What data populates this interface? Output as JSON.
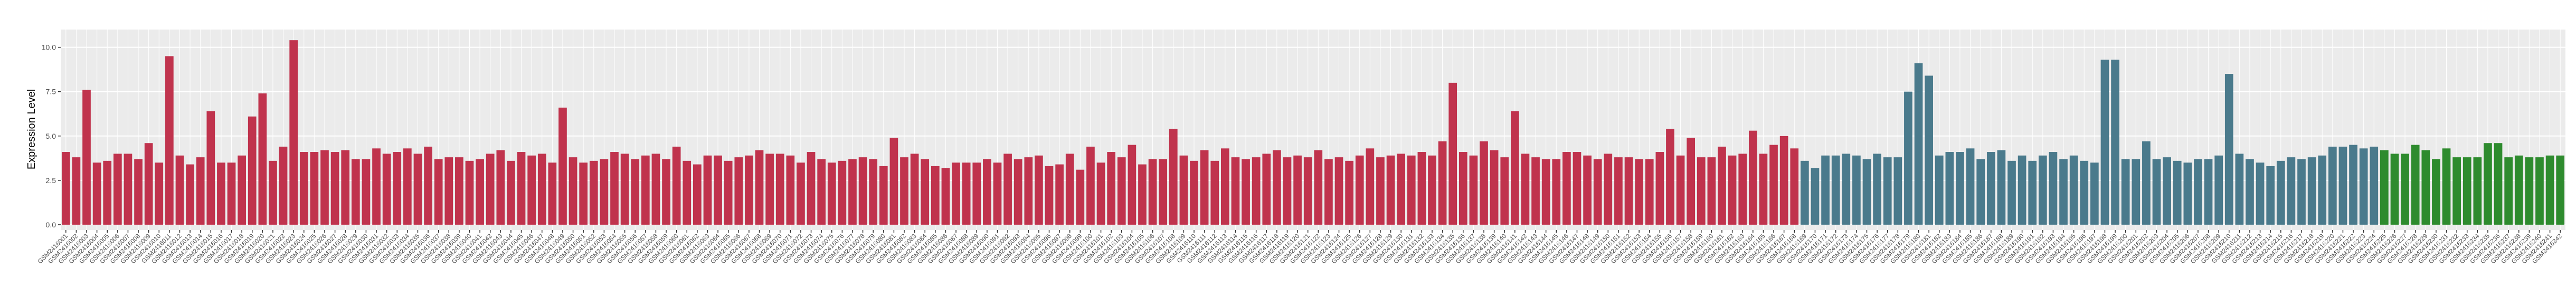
{
  "chart_data": {
    "type": "bar",
    "y_label": "Expression Level",
    "ylim": [
      -0.3,
      11
    ],
    "yticks": [
      {
        "value": 0,
        "label": "0.0"
      },
      {
        "value": 2.5,
        "label": "2.5"
      },
      {
        "value": 5,
        "label": "5.0"
      },
      {
        "value": 7.5,
        "label": "7.5"
      },
      {
        "value": 10,
        "label": "10.0"
      }
    ],
    "grid": true,
    "series": [
      {
        "color": "#c0334d",
        "categories": [
          "GSM2416001",
          "GSM2416002",
          "GSM2416003",
          "GSM2416004",
          "GSM2416005",
          "GSM2416006",
          "GSM2416007",
          "GSM2416008",
          "GSM2416009",
          "GSM2416010",
          "GSM2416011",
          "GSM2416012",
          "GSM2416013",
          "GSM2416014",
          "GSM2416015",
          "GSM2416016",
          "GSM2416017",
          "GSM2416018",
          "GSM2416019",
          "GSM2416020",
          "GSM2416021",
          "GSM2416022",
          "GSM2416023",
          "GSM2416024",
          "GSM2416025",
          "GSM2416026",
          "GSM2416027",
          "GSM2416028",
          "GSM2416029",
          "GSM2416030",
          "GSM2416031",
          "GSM2416032",
          "GSM2416033",
          "GSM2416034",
          "GSM2416035",
          "GSM2416036",
          "GSM2416037",
          "GSM2416038",
          "GSM2416039",
          "GSM2416040",
          "GSM2416041",
          "GSM2416042",
          "GSM2416043",
          "GSM2416044",
          "GSM2416045",
          "GSM2416046",
          "GSM2416047",
          "GSM2416048",
          "GSM2416049",
          "GSM2416050",
          "GSM2416051",
          "GSM2416052",
          "GSM2416053",
          "GSM2416054",
          "GSM2416055",
          "GSM2416056",
          "GSM2416057",
          "GSM2416058",
          "GSM2416059",
          "GSM2416060",
          "GSM2416061",
          "GSM2416062",
          "GSM2416063",
          "GSM2416064",
          "GSM2416065",
          "GSM2416066",
          "GSM2416067",
          "GSM2416068",
          "GSM2416069",
          "GSM2416070",
          "GSM2416071",
          "GSM2416072",
          "GSM2416073",
          "GSM2416074",
          "GSM2416075",
          "GSM2416076",
          "GSM2416077",
          "GSM2416078",
          "GSM2416079",
          "GSM2416080",
          "GSM2416081",
          "GSM2416082",
          "GSM2416083",
          "GSM2416084",
          "GSM2416085",
          "GSM2416086",
          "GSM2416087",
          "GSM2416088",
          "GSM2416089",
          "GSM2416090",
          "GSM2416091",
          "GSM2416092",
          "GSM2416093",
          "GSM2416094",
          "GSM2416095",
          "GSM2416096",
          "GSM2416097",
          "GSM2416098",
          "GSM2416099",
          "GSM2416100",
          "GSM2416101",
          "GSM2416102",
          "GSM2416103",
          "GSM2416104",
          "GSM2416105",
          "GSM2416106",
          "GSM2416107",
          "GSM2416108",
          "GSM2416109",
          "GSM2416110",
          "GSM2416111",
          "GSM2416112",
          "GSM2416113",
          "GSM2416114",
          "GSM2416115",
          "GSM2416116",
          "GSM2416117",
          "GSM2416118",
          "GSM2416119",
          "GSM2416120",
          "GSM2416121",
          "GSM2416122",
          "GSM2416123",
          "GSM2416124",
          "GSM2416125",
          "GSM2416126",
          "GSM2416127",
          "GSM2416128",
          "GSM2416129",
          "GSM2416130",
          "GSM2416131",
          "GSM2416132",
          "GSM2416133",
          "GSM2416134",
          "GSM2416135",
          "GSM2416136",
          "GSM2416137",
          "GSM2416138",
          "GSM2416139",
          "GSM2416140",
          "GSM2416141",
          "GSM2416142",
          "GSM2416143",
          "GSM2416144",
          "GSM2416145",
          "GSM2416146",
          "GSM2416147",
          "GSM2416148",
          "GSM2416149",
          "GSM2416150",
          "GSM2416151",
          "GSM2416152",
          "GSM2416153",
          "GSM2416154",
          "GSM2416155",
          "GSM2416156",
          "GSM2416157",
          "GSM2416158",
          "GSM2416159",
          "GSM2416160",
          "GSM2416161",
          "GSM2416162",
          "GSM2416163",
          "GSM2416164",
          "GSM2416165",
          "GSM2416166",
          "GSM2416167",
          "GSM2416168"
        ],
        "values": [
          4.1,
          3.8,
          7.6,
          3.5,
          3.6,
          4.0,
          4.0,
          3.7,
          4.6,
          3.5,
          9.5,
          3.9,
          3.4,
          3.8,
          6.4,
          3.5,
          3.5,
          3.9,
          6.1,
          7.4,
          3.6,
          4.4,
          10.4,
          4.1,
          4.1,
          4.2,
          4.1,
          4.2,
          3.7,
          3.7,
          4.3,
          4.0,
          4.1,
          4.3,
          4.0,
          4.4,
          3.7,
          3.8,
          3.8,
          3.6,
          3.7,
          4.0,
          4.2,
          3.6,
          4.1,
          3.9,
          4.0,
          3.5,
          6.6,
          3.8,
          3.5,
          3.6,
          3.7,
          4.1,
          4.0,
          3.7,
          3.9,
          4.0,
          3.7,
          4.4,
          3.6,
          3.4,
          3.9,
          3.9,
          3.6,
          3.8,
          3.9,
          4.2,
          4.0,
          4.0,
          3.9,
          3.5,
          4.1,
          3.7,
          3.5,
          3.6,
          3.7,
          3.8,
          3.7,
          3.3,
          4.9,
          3.8,
          4.0,
          3.7,
          3.3,
          3.2,
          3.5,
          3.5,
          3.5,
          3.7,
          3.5,
          4.0,
          3.7,
          3.8,
          3.9,
          3.3,
          3.4,
          4.0,
          3.1,
          4.4,
          3.5,
          4.1,
          3.8,
          4.5,
          3.4,
          3.7,
          3.7,
          5.4,
          3.9,
          3.6,
          4.2,
          3.6,
          4.3,
          3.8,
          3.7,
          3.8,
          4.0,
          4.2,
          3.8,
          3.9,
          3.8,
          4.2,
          3.7,
          3.8,
          3.6,
          3.9,
          4.3,
          3.8,
          3.9,
          4.0,
          3.9,
          4.1,
          3.9,
          4.7,
          8.0,
          4.1,
          3.9,
          4.7,
          4.2,
          3.8,
          6.4,
          4.0,
          3.8,
          3.7,
          3.7,
          4.1,
          4.1,
          3.9,
          3.7,
          4.0,
          3.8,
          3.8,
          3.7,
          3.7,
          4.1,
          5.4,
          3.9,
          4.9,
          3.8,
          3.8,
          4.4,
          3.9,
          4.0,
          5.3,
          4.0,
          4.5,
          5.0,
          4.3
        ]
      },
      {
        "color": "#4a7a8c",
        "categories": [
          "GSM2416169",
          "GSM2416170",
          "GSM2416171",
          "GSM2416172",
          "GSM2416173",
          "GSM2416174",
          "GSM2416175",
          "GSM2416176",
          "GSM2416177",
          "GSM2416178",
          "GSM2416179",
          "GSM2416180",
          "GSM2416181",
          "GSM2416182",
          "GSM2416183",
          "GSM2416184",
          "GSM2416185",
          "GSM2416186",
          "GSM2416187",
          "GSM2416188",
          "GSM2416189",
          "GSM2416190",
          "GSM2416191",
          "GSM2416192",
          "GSM2416193",
          "GSM2416194",
          "GSM2416195",
          "GSM2416196",
          "GSM2416197",
          "GSM2416198",
          "GSM2416199",
          "GSM2416200",
          "GSM2416201",
          "GSM2416202",
          "GSM2416203",
          "GSM2416204",
          "GSM2416205",
          "GSM2416206",
          "GSM2416207",
          "GSM2416208",
          "GSM2416209",
          "GSM2416210",
          "GSM2416211",
          "GSM2416212",
          "GSM2416213",
          "GSM2416214",
          "GSM2416215",
          "GSM2416216",
          "GSM2416217",
          "GSM2416218",
          "GSM2416219",
          "GSM2416220",
          "GSM2416221",
          "GSM2416222",
          "GSM2416223",
          "GSM2416224"
        ],
        "values": [
          3.6,
          3.2,
          3.9,
          3.9,
          4.0,
          3.9,
          3.7,
          4.0,
          3.8,
          3.8,
          7.5,
          9.1,
          8.4,
          3.9,
          4.1,
          4.1,
          4.3,
          3.7,
          4.1,
          4.2,
          3.6,
          3.9,
          3.6,
          3.9,
          4.1,
          3.7,
          3.9,
          3.6,
          3.5,
          9.3,
          9.3,
          3.7,
          3.7,
          4.7,
          3.7,
          3.8,
          3.6,
          3.5,
          3.7,
          3.7,
          3.9,
          8.5,
          4.0,
          3.7,
          3.5,
          3.3,
          3.6,
          3.8,
          3.7,
          3.8,
          3.9,
          4.4,
          4.4,
          4.5,
          4.3,
          4.4
        ]
      },
      {
        "color": "#2e8b2e",
        "categories": [
          "GSM2416225",
          "GSM2416226",
          "GSM2416227",
          "GSM2416228",
          "GSM2416229",
          "GSM2416230",
          "GSM2416231",
          "GSM2416232",
          "GSM2416233",
          "GSM2416234",
          "GSM2416235",
          "GSM2416236",
          "GSM2416237",
          "GSM2416238",
          "GSM2416239",
          "GSM2416240",
          "GSM2416241",
          "GSM2416242"
        ],
        "values": [
          4.2,
          4.0,
          4.0,
          4.5,
          4.2,
          3.7,
          4.3,
          3.8,
          3.8,
          3.8,
          4.6,
          4.6,
          3.8,
          3.9,
          3.8,
          3.8,
          3.9,
          3.9
        ]
      }
    ]
  }
}
